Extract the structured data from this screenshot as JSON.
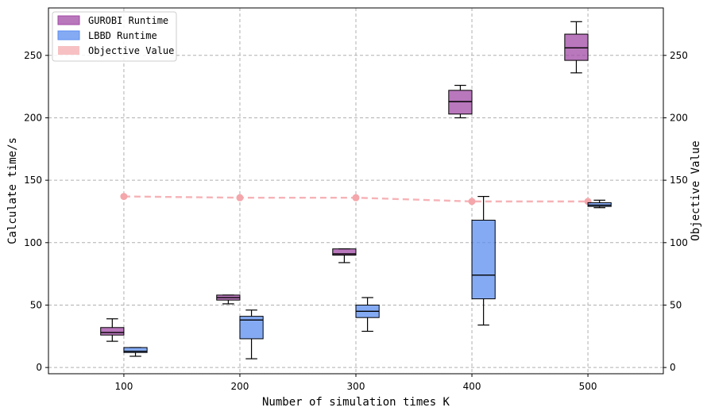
{
  "chart_data": {
    "type": "box",
    "xlabel": "Number of simulation times K",
    "ylabel_left": "Calculate time/s",
    "ylabel_right": "Objective Value",
    "categories": [
      "100",
      "200",
      "300",
      "400",
      "500"
    ],
    "y_left_range": [
      -5,
      288
    ],
    "y_right_range": [
      -5,
      288
    ],
    "y_left_ticks": [
      "0",
      "50",
      "100",
      "150",
      "200",
      "250"
    ],
    "y_right_ticks": [
      "0",
      "50",
      "100",
      "150",
      "200",
      "250"
    ],
    "grid": true,
    "legend_position": "top-left",
    "series": [
      {
        "name": "GUROBI Runtime",
        "kind": "box",
        "color": "#a24aa6",
        "boxes": [
          {
            "category": "100",
            "whisker_low": 21,
            "q1": 26,
            "median": 28,
            "q3": 32,
            "whisker_high": 39
          },
          {
            "category": "200",
            "whisker_low": 51,
            "q1": 54,
            "median": 56,
            "q3": 58,
            "whisker_high": 58
          },
          {
            "category": "300",
            "whisker_low": 84,
            "q1": 90,
            "median": 91,
            "q3": 95,
            "whisker_high": 95
          },
          {
            "category": "400",
            "whisker_low": 200,
            "q1": 203,
            "median": 213,
            "q3": 222,
            "whisker_high": 226
          },
          {
            "category": "500",
            "whisker_low": 236,
            "q1": 246,
            "median": 256,
            "q3": 267,
            "whisker_high": 277
          }
        ]
      },
      {
        "name": "LBBD Runtime",
        "kind": "box",
        "color": "#5b8def",
        "boxes": [
          {
            "category": "100",
            "whisker_low": 9,
            "q1": 12,
            "median": 13,
            "q3": 16,
            "whisker_high": 16
          },
          {
            "category": "200",
            "whisker_low": 7,
            "q1": 23,
            "median": 38,
            "q3": 41,
            "whisker_high": 46
          },
          {
            "category": "300",
            "whisker_low": 29,
            "q1": 40,
            "median": 45,
            "q3": 50,
            "whisker_high": 56
          },
          {
            "category": "400",
            "whisker_low": 34,
            "q1": 55,
            "median": 74,
            "q3": 118,
            "whisker_high": 137
          },
          {
            "category": "500",
            "whisker_low": 128,
            "q1": 129,
            "median": 130,
            "q3": 132,
            "whisker_high": 134
          }
        ]
      },
      {
        "name": "Objective Value",
        "kind": "line",
        "color": "#f4a6aa",
        "axis": "right",
        "values": [
          137,
          136,
          136,
          133,
          133
        ]
      }
    ]
  }
}
